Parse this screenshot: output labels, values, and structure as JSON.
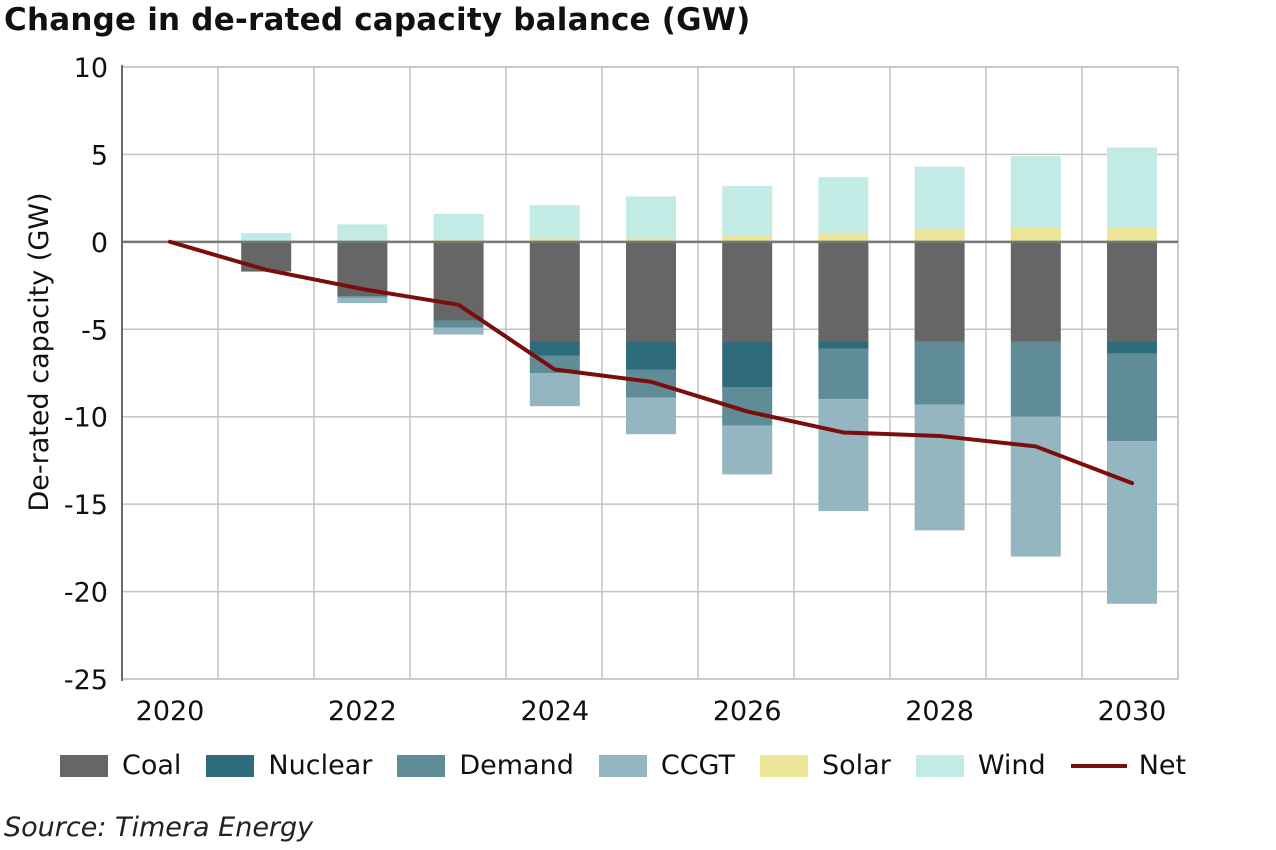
{
  "chart_data": {
    "type": "bar",
    "stacked": true,
    "title": "Change in de-rated capacity balance (GW)",
    "ylabel": "De-rated capacity (GW)",
    "xlabel": "",
    "ylim": [
      -25,
      10
    ],
    "yticks": [
      10,
      5,
      0,
      -5,
      -10,
      -15,
      -20,
      -25
    ],
    "ytick_labels": [
      "10",
      "5",
      "0",
      "-5",
      "-10",
      "-15",
      "-20",
      "-25"
    ],
    "categories": [
      "2020",
      "2021",
      "2022",
      "2023",
      "2024",
      "2025",
      "2026",
      "2027",
      "2028",
      "2029",
      "2030"
    ],
    "xtick_labels": [
      "2020",
      "2022",
      "2024",
      "2026",
      "2028",
      "2030"
    ],
    "grid": true,
    "legend_position": "bottom",
    "series": [
      {
        "name": "Coal",
        "color": "#666666",
        "values": [
          0,
          -1.7,
          -3.1,
          -4.5,
          -5.7,
          -5.7,
          -5.7,
          -5.7,
          -5.7,
          -5.7,
          -5.7
        ]
      },
      {
        "name": "Nuclear",
        "color": "#2e6b7b",
        "values": [
          0,
          0,
          0,
          0,
          -0.8,
          -1.6,
          -2.6,
          -0.4,
          0,
          0,
          -0.7
        ]
      },
      {
        "name": "Demand",
        "color": "#5f8c97",
        "values": [
          0,
          0,
          -0.1,
          -0.4,
          -1.0,
          -1.6,
          -2.2,
          -2.9,
          -3.6,
          -4.3,
          -5.0
        ]
      },
      {
        "name": "CCGT",
        "color": "#93b6c1",
        "values": [
          0,
          0,
          -0.3,
          -0.4,
          -1.9,
          -2.1,
          -2.8,
          -6.4,
          -7.2,
          -8.0,
          -9.3
        ]
      },
      {
        "name": "Solar",
        "color": "#ece597",
        "values": [
          0,
          0,
          0,
          0.1,
          0.2,
          0.2,
          0.4,
          0.5,
          0.7,
          0.8,
          0.8
        ]
      },
      {
        "name": "Wind",
        "color": "#c3ebe6",
        "values": [
          0,
          0.5,
          1.0,
          1.5,
          1.9,
          2.4,
          2.8,
          3.2,
          3.6,
          4.1,
          4.6
        ]
      }
    ],
    "net": {
      "name": "Net",
      "color": "#7b0d0d",
      "values": [
        0,
        -1.6,
        -2.7,
        -3.6,
        -7.3,
        -8.0,
        -9.7,
        -10.9,
        -11.1,
        -11.7,
        -13.8
      ]
    }
  },
  "source": "Source: Timera Energy"
}
